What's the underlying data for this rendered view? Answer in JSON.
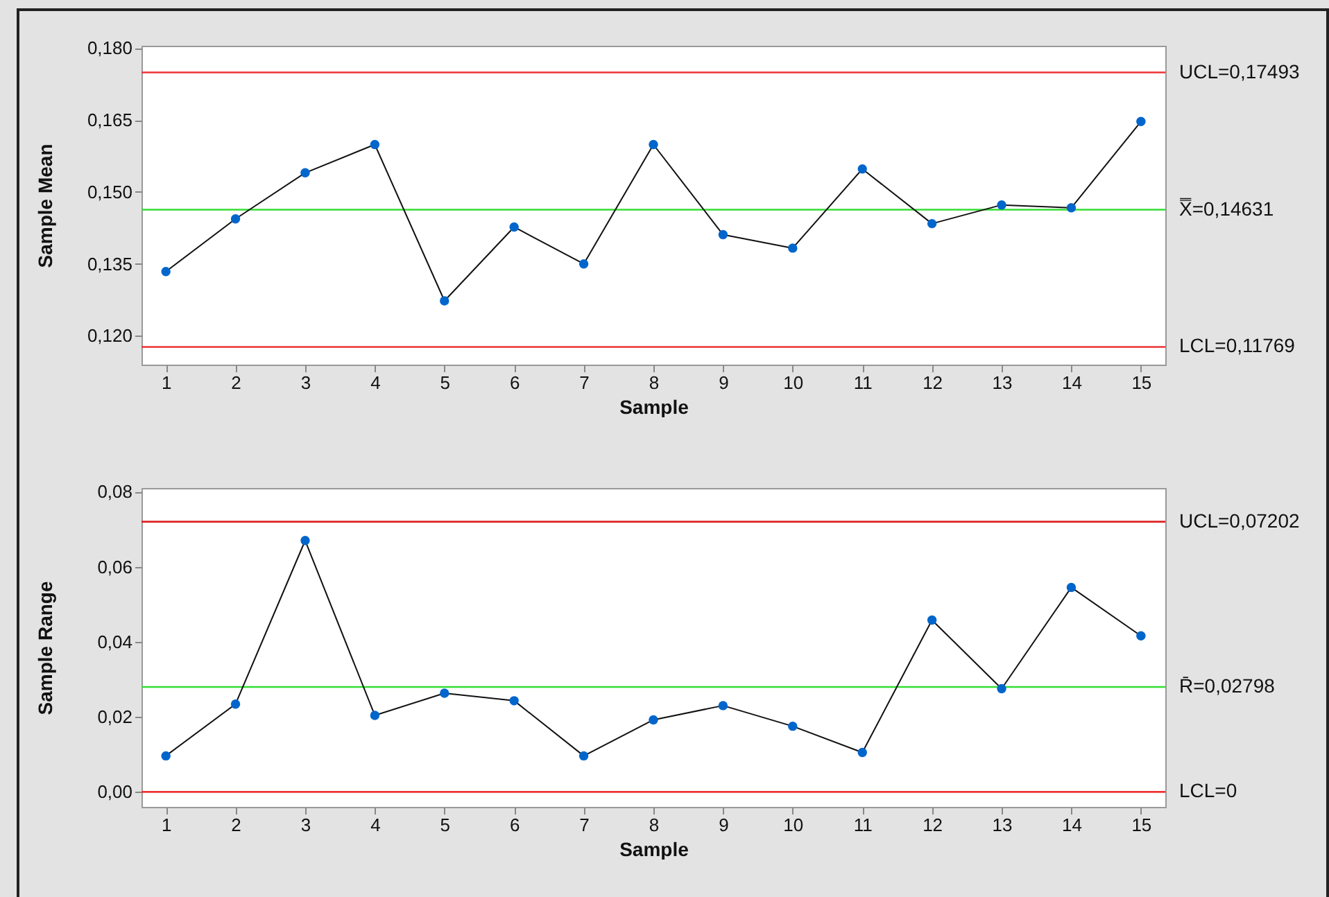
{
  "chart_data": [
    {
      "type": "line",
      "xlabel": "Sample",
      "ylabel": "Sample Mean",
      "marker": "circle",
      "x": [
        1,
        2,
        3,
        4,
        5,
        6,
        7,
        8,
        9,
        10,
        11,
        12,
        13,
        14,
        15
      ],
      "xlim": [
        0.65,
        15.35
      ],
      "xticks": [
        1,
        2,
        3,
        4,
        5,
        6,
        7,
        8,
        9,
        10,
        11,
        12,
        13,
        14,
        15
      ],
      "series": [
        {
          "color": "#0066cc",
          "values": [
            0.1334,
            0.1444,
            0.154,
            0.1599,
            0.1273,
            0.1427,
            0.135,
            0.1599,
            0.1411,
            0.1383,
            0.1548,
            0.1434,
            0.1473,
            0.1467,
            0.1647
          ]
        }
      ],
      "ylim": [
        0.114,
        0.1805
      ],
      "yticks": [
        {
          "value": 0.12,
          "label": "0,120"
        },
        {
          "value": 0.135,
          "label": "0,135"
        },
        {
          "value": 0.15,
          "label": "0,150"
        },
        {
          "value": 0.165,
          "label": "0,165"
        },
        {
          "value": 0.18,
          "label": "0,180"
        }
      ],
      "ref_lines": [
        {
          "axis": "y",
          "value": 0.17493,
          "label": "UCL=0,17493",
          "color": "#ee3333"
        },
        {
          "axis": "y",
          "value": 0.14631,
          "label": "X̿=0,14631",
          "color": "#33dd33"
        },
        {
          "axis": "y",
          "value": 0.11769,
          "label": "LCL=0,11769",
          "color": "#ee3333"
        }
      ]
    },
    {
      "type": "line",
      "xlabel": "Sample",
      "ylabel": "Sample Range",
      "marker": "circle",
      "x": [
        1,
        2,
        3,
        4,
        5,
        6,
        7,
        8,
        9,
        10,
        11,
        12,
        13,
        14,
        15
      ],
      "xlim": [
        0.65,
        15.35
      ],
      "xticks": [
        1,
        2,
        3,
        4,
        5,
        6,
        7,
        8,
        9,
        10,
        11,
        12,
        13,
        14,
        15
      ],
      "series": [
        {
          "color": "#0066cc",
          "values": [
            0.0096,
            0.0234,
            0.067,
            0.0204,
            0.0263,
            0.0243,
            0.0096,
            0.0192,
            0.023,
            0.0175,
            0.0105,
            0.0458,
            0.0275,
            0.0545,
            0.0416
          ]
        }
      ],
      "ylim": [
        -0.004,
        0.081
      ],
      "yticks": [
        {
          "value": 0,
          "label": "0,00"
        },
        {
          "value": 0.02,
          "label": "0,02"
        },
        {
          "value": 0.04,
          "label": "0,04"
        },
        {
          "value": 0.06,
          "label": "0,06"
        },
        {
          "value": 0.08,
          "label": "0,08"
        }
      ],
      "ref_lines": [
        {
          "axis": "y",
          "value": 0.07202,
          "label": "UCL=0,07202",
          "color": "#dd2222"
        },
        {
          "axis": "y",
          "value": 0.02798,
          "label": "R̄=0,02798",
          "color": "#33dd33"
        },
        {
          "axis": "y",
          "value": 0,
          "label": "LCL=0",
          "color": "#ee3333"
        }
      ]
    }
  ]
}
